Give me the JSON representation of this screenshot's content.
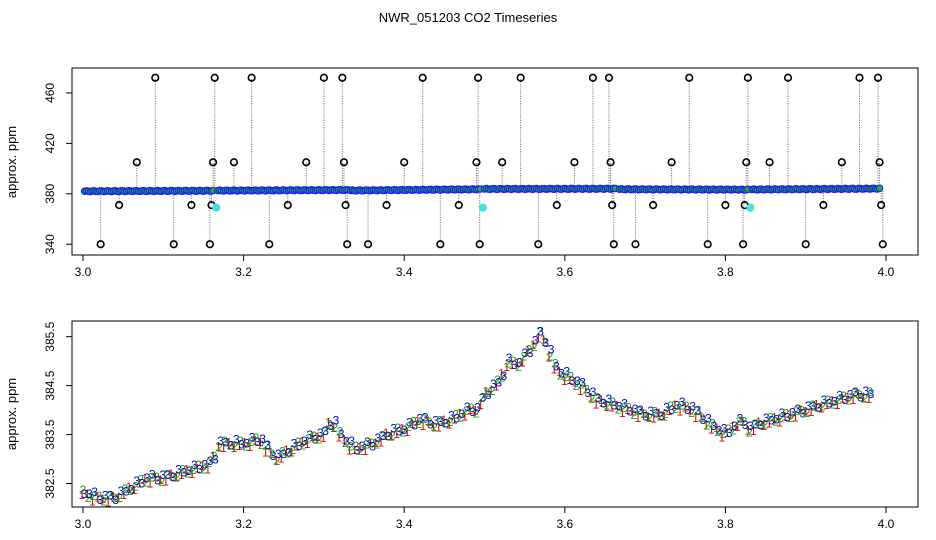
{
  "title": "NWR_051203  CO2 Timeseries",
  "colors": {
    "main_points": "#1a1aff",
    "fill_green": "#18c018",
    "outlier": "#000000",
    "highlight": "#40e0e0",
    "connector": "#808080",
    "red_label": "#e00000",
    "green_label": "#00b000",
    "blue_label": "#0000d0"
  },
  "chart_data": [
    {
      "type": "scatter",
      "ylabel": "approx. ppm",
      "xlim": [
        3.0,
        4.0
      ],
      "ylim": [
        337,
        475
      ],
      "x_ticks": [
        3.0,
        3.2,
        3.4,
        3.6,
        3.8,
        4.0
      ],
      "x_tick_labels": [
        "3.0",
        "3.2",
        "3.4",
        "3.6",
        "3.8",
        "4.0"
      ],
      "y_ticks": [
        340,
        380,
        420,
        460
      ],
      "y_tick_labels": [
        "340",
        "380",
        "420",
        "460"
      ],
      "grid": false,
      "segments": [
        {
          "x0": 3.002,
          "x1": 3.162,
          "y0": 382.0,
          "y1": 382.4
        },
        {
          "x0": 3.168,
          "x1": 3.33,
          "y0": 382.5,
          "y1": 383.0
        },
        {
          "x0": 3.333,
          "x1": 3.495,
          "y0": 382.6,
          "y1": 383.6
        },
        {
          "x0": 3.5,
          "x1": 3.663,
          "y0": 383.8,
          "y1": 384.0
        },
        {
          "x0": 3.668,
          "x1": 3.828,
          "y0": 383.6,
          "y1": 383.3
        },
        {
          "x0": 3.833,
          "x1": 3.992,
          "y0": 383.4,
          "y1": 384.1
        }
      ],
      "outliers": [
        {
          "x": 3.022,
          "y": 340
        },
        {
          "x": 3.045,
          "y": 371
        },
        {
          "x": 3.067,
          "y": 405
        },
        {
          "x": 3.09,
          "y": 472
        },
        {
          "x": 3.113,
          "y": 340
        },
        {
          "x": 3.135,
          "y": 371
        },
        {
          "x": 3.158,
          "y": 340
        },
        {
          "x": 3.16,
          "y": 371
        },
        {
          "x": 3.162,
          "y": 405
        },
        {
          "x": 3.164,
          "y": 472
        },
        {
          "x": 3.188,
          "y": 405
        },
        {
          "x": 3.21,
          "y": 472
        },
        {
          "x": 3.232,
          "y": 340
        },
        {
          "x": 3.255,
          "y": 371
        },
        {
          "x": 3.278,
          "y": 405
        },
        {
          "x": 3.3,
          "y": 472
        },
        {
          "x": 3.323,
          "y": 472
        },
        {
          "x": 3.325,
          "y": 405
        },
        {
          "x": 3.327,
          "y": 371
        },
        {
          "x": 3.329,
          "y": 340
        },
        {
          "x": 3.355,
          "y": 340
        },
        {
          "x": 3.378,
          "y": 371
        },
        {
          "x": 3.4,
          "y": 405
        },
        {
          "x": 3.423,
          "y": 472
        },
        {
          "x": 3.445,
          "y": 340
        },
        {
          "x": 3.468,
          "y": 371
        },
        {
          "x": 3.49,
          "y": 405
        },
        {
          "x": 3.492,
          "y": 472
        },
        {
          "x": 3.494,
          "y": 340
        },
        {
          "x": 3.522,
          "y": 405
        },
        {
          "x": 3.545,
          "y": 472
        },
        {
          "x": 3.567,
          "y": 340
        },
        {
          "x": 3.59,
          "y": 371
        },
        {
          "x": 3.612,
          "y": 405
        },
        {
          "x": 3.635,
          "y": 472
        },
        {
          "x": 3.655,
          "y": 472
        },
        {
          "x": 3.657,
          "y": 405
        },
        {
          "x": 3.659,
          "y": 371
        },
        {
          "x": 3.661,
          "y": 340
        },
        {
          "x": 3.688,
          "y": 340
        },
        {
          "x": 3.71,
          "y": 371
        },
        {
          "x": 3.733,
          "y": 405
        },
        {
          "x": 3.755,
          "y": 472
        },
        {
          "x": 3.778,
          "y": 340
        },
        {
          "x": 3.8,
          "y": 371
        },
        {
          "x": 3.822,
          "y": 340
        },
        {
          "x": 3.824,
          "y": 371
        },
        {
          "x": 3.826,
          "y": 405
        },
        {
          "x": 3.828,
          "y": 472
        },
        {
          "x": 3.855,
          "y": 405
        },
        {
          "x": 3.878,
          "y": 472
        },
        {
          "x": 3.9,
          "y": 340
        },
        {
          "x": 3.922,
          "y": 371
        },
        {
          "x": 3.945,
          "y": 405
        },
        {
          "x": 3.967,
          "y": 472
        },
        {
          "x": 3.99,
          "y": 472
        },
        {
          "x": 3.992,
          "y": 405
        },
        {
          "x": 3.994,
          "y": 371
        },
        {
          "x": 3.996,
          "y": 340
        }
      ],
      "highlights": [
        {
          "x": 3.166,
          "y": 369
        },
        {
          "x": 3.498,
          "y": 369
        },
        {
          "x": 3.831,
          "y": 369
        }
      ]
    },
    {
      "type": "scatter",
      "ylabel": "approx. ppm",
      "xlim": [
        3.0,
        4.0
      ],
      "ylim": [
        382.0,
        385.8
      ],
      "x_ticks": [
        3.0,
        3.2,
        3.4,
        3.6,
        3.8,
        4.0
      ],
      "x_tick_labels": [
        "3.0",
        "3.2",
        "3.4",
        "3.6",
        "3.8",
        "4.0"
      ],
      "y_ticks": [
        382.5,
        383.5,
        384.5,
        385.5
      ],
      "y_tick_labels": [
        "382.5",
        "383.5",
        "384.5",
        "385.5"
      ],
      "grid": false,
      "series": [
        {
          "label": "1",
          "color": "red"
        },
        {
          "label": "2",
          "color": "green"
        },
        {
          "label": "3",
          "color": "blue"
        }
      ],
      "x": [
        3.0,
        3.02,
        3.04,
        3.06,
        3.08,
        3.1,
        3.12,
        3.14,
        3.16,
        3.165,
        3.17,
        3.2,
        3.22,
        3.24,
        3.26,
        3.28,
        3.3,
        3.31,
        3.32,
        3.33,
        3.34,
        3.36,
        3.38,
        3.4,
        3.42,
        3.44,
        3.46,
        3.48,
        3.49,
        3.5,
        3.52,
        3.53,
        3.54,
        3.55,
        3.56,
        3.57,
        3.58,
        3.59,
        3.6,
        3.62,
        3.64,
        3.66,
        3.68,
        3.7,
        3.72,
        3.74,
        3.76,
        3.78,
        3.8,
        3.82,
        3.83,
        3.84,
        3.86,
        3.88,
        3.9,
        3.92,
        3.94,
        3.96,
        3.98
      ],
      "values": [
        382.3,
        382.2,
        382.2,
        382.4,
        382.6,
        382.6,
        382.7,
        382.8,
        382.9,
        383.1,
        383.3,
        383.3,
        383.4,
        383.0,
        383.2,
        383.4,
        383.5,
        383.8,
        383.5,
        383.3,
        383.2,
        383.3,
        383.5,
        383.6,
        383.8,
        383.7,
        383.8,
        384.0,
        384.0,
        384.3,
        384.6,
        385.0,
        384.9,
        385.1,
        385.3,
        385.6,
        385.2,
        384.8,
        384.7,
        384.5,
        384.2,
        384.1,
        384.0,
        383.9,
        383.9,
        384.1,
        384.0,
        383.7,
        383.5,
        383.8,
        383.6,
        383.7,
        383.8,
        383.9,
        384.0,
        384.1,
        384.2,
        384.3,
        384.3
      ]
    }
  ]
}
